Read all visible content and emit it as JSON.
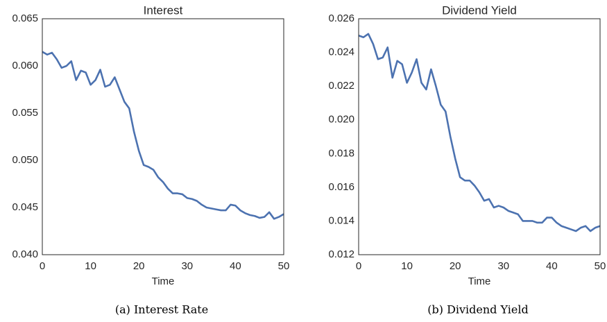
{
  "chart_data": [
    {
      "type": "line",
      "title": "Interest",
      "xlabel": "Time",
      "caption": "(a) Interest Rate",
      "x": [
        0,
        1,
        2,
        3,
        4,
        5,
        6,
        7,
        8,
        9,
        10,
        11,
        12,
        13,
        14,
        15,
        16,
        17,
        18,
        19,
        20,
        21,
        22,
        23,
        24,
        25,
        26,
        27,
        28,
        29,
        30,
        31,
        32,
        33,
        34,
        35,
        36,
        37,
        38,
        39,
        40,
        41,
        42,
        43,
        44,
        45,
        46,
        47,
        48,
        49,
        50
      ],
      "series": [
        {
          "color": "#4c72b0",
          "values": [
            0.0615,
            0.0612,
            0.0614,
            0.0607,
            0.0598,
            0.06,
            0.0605,
            0.0585,
            0.0595,
            0.0593,
            0.058,
            0.0585,
            0.0596,
            0.0578,
            0.058,
            0.0588,
            0.0575,
            0.0562,
            0.0555,
            0.053,
            0.051,
            0.0495,
            0.0493,
            0.049,
            0.0482,
            0.0477,
            0.047,
            0.0465,
            0.0465,
            0.0464,
            0.046,
            0.0459,
            0.0457,
            0.0453,
            0.045,
            0.0449,
            0.0448,
            0.0447,
            0.0447,
            0.0453,
            0.0452,
            0.0447,
            0.0444,
            0.0442,
            0.0441,
            0.0439,
            0.044,
            0.0445,
            0.0438,
            0.044,
            0.0443
          ]
        }
      ],
      "xlim": [
        0,
        50
      ],
      "xticks": [
        0,
        10,
        20,
        30,
        40,
        50
      ],
      "ylim": [
        0.04,
        0.065
      ],
      "yticks": [
        {
          "value": 0.04,
          "label": "0.040"
        },
        0.045,
        {
          "value": 0.05,
          "label": "0.050"
        },
        0.055,
        {
          "value": 0.06,
          "label": "0.060"
        },
        0.065
      ],
      "grid": false
    },
    {
      "type": "line",
      "title": "Dividend Yield",
      "xlabel": "Time",
      "caption": "(b) Dividend Yield",
      "x": [
        0,
        1,
        2,
        3,
        4,
        5,
        6,
        7,
        8,
        9,
        10,
        11,
        12,
        13,
        14,
        15,
        16,
        17,
        18,
        19,
        20,
        21,
        22,
        23,
        24,
        25,
        26,
        27,
        28,
        29,
        30,
        31,
        32,
        33,
        34,
        35,
        36,
        37,
        38,
        39,
        40,
        41,
        42,
        43,
        44,
        45,
        46,
        47,
        48,
        49,
        50
      ],
      "series": [
        {
          "color": "#4c72b0",
          "values": [
            0.025,
            0.0249,
            0.0251,
            0.0245,
            0.0236,
            0.0237,
            0.0243,
            0.0225,
            0.0235,
            0.0233,
            0.0222,
            0.0228,
            0.0236,
            0.0222,
            0.0218,
            0.023,
            0.022,
            0.0209,
            0.0205,
            0.019,
            0.0177,
            0.0166,
            0.0164,
            0.0164,
            0.0161,
            0.0157,
            0.0152,
            0.0153,
            0.0148,
            0.0149,
            0.0148,
            0.0146,
            0.0145,
            0.0144,
            0.014,
            0.014,
            0.014,
            0.0139,
            0.0139,
            0.0142,
            0.0142,
            0.0139,
            0.0137,
            0.0136,
            0.0135,
            0.0134,
            0.0136,
            0.0137,
            0.0134,
            0.0136,
            0.0137
          ]
        }
      ],
      "xlim": [
        0,
        50
      ],
      "xticks": [
        0,
        10,
        20,
        30,
        40,
        50
      ],
      "ylim": [
        0.012,
        0.026
      ],
      "yticks": [
        0.012,
        0.014,
        0.016,
        0.018,
        {
          "value": 0.02,
          "label": "0.020"
        },
        0.022,
        0.024,
        0.026
      ],
      "grid": false
    }
  ]
}
